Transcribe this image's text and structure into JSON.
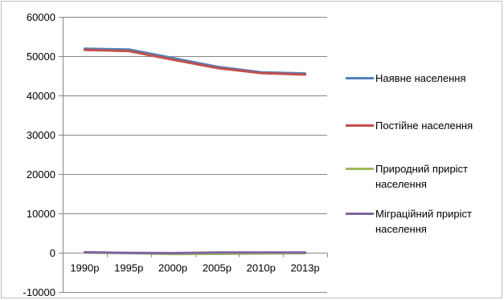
{
  "chart_data": {
    "type": "line",
    "categories": [
      "1990р",
      "1995р",
      "2000р",
      "2005р",
      "2010р",
      "2013р"
    ],
    "ylim": [
      -10000,
      60000
    ],
    "yticks": [
      -10000,
      0,
      10000,
      20000,
      30000,
      40000,
      50000,
      60000
    ],
    "ytick_labels": [
      "-10000",
      "0",
      "10000",
      "20000",
      "30000",
      "40000",
      "50000",
      "60000"
    ],
    "grid": true,
    "legend_position": "right",
    "series": [
      {
        "name": "Наявне населення",
        "color": "#4f81bd",
        "values": [
          51900,
          51700,
          49500,
          47300,
          45900,
          45600
        ]
      },
      {
        "name": "Постійне населення",
        "color": "#c0504d",
        "values": [
          51600,
          51300,
          49100,
          47000,
          45700,
          45300
        ]
      },
      {
        "name": "Природний приріст населення",
        "color": "#9bbb59",
        "values": [
          0,
          -100,
          -350,
          -300,
          -200,
          -150
        ]
      },
      {
        "name": "Міграційний приріст населення",
        "color": "#8064a2",
        "values": [
          100,
          -50,
          -100,
          50,
          50,
          50
        ]
      }
    ]
  }
}
